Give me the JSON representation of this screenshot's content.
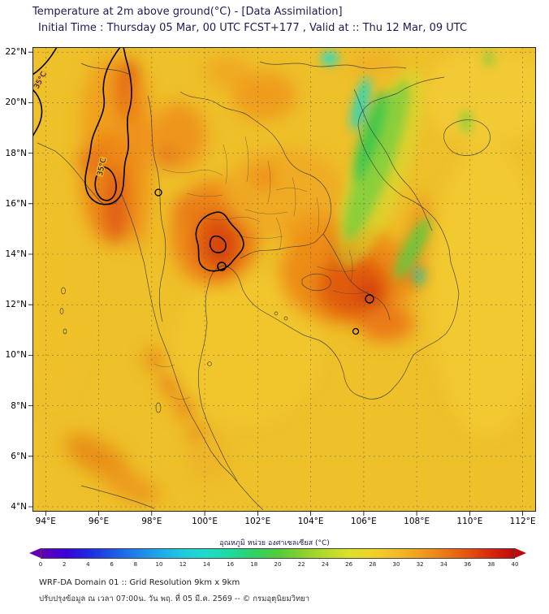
{
  "header": {
    "title": "Temperature at 2m above ground(°C) - [Data Assimilation]",
    "subtitle": "Initial Time : Thursday 05 Mar, 00 UTC FCST+177 , Valid at :: Thu 12 Mar, 09 UTC"
  },
  "map": {
    "x_ticks": [
      "94°E",
      "96°E",
      "98°E",
      "100°E",
      "102°E",
      "104°E",
      "106°E",
      "108°E",
      "110°E",
      "112°E"
    ],
    "y_ticks": [
      "22°N",
      "20°N",
      "18°N",
      "16°N",
      "14°N",
      "12°N",
      "10°N",
      "8°N",
      "6°N",
      "4°N"
    ],
    "contour_labels": [
      "35°C",
      "35°C"
    ]
  },
  "colorbar": {
    "title": "อุณหภูมิ หน่วย องศาเซลเซียส (°C)",
    "ticks": [
      "0",
      "2",
      "4",
      "6",
      "8",
      "10",
      "12",
      "14",
      "16",
      "18",
      "20",
      "22",
      "24",
      "26",
      "28",
      "30",
      "32",
      "34",
      "36",
      "38",
      "40"
    ],
    "gradient": [
      "#6600b4",
      "#3b00d8",
      "#1e2ae0",
      "#1e56e6",
      "#1e80ea",
      "#1ea8ea",
      "#1ecade",
      "#1edcc8",
      "#1eda9e",
      "#2ed262",
      "#52cc3a",
      "#86d02e",
      "#b4da2a",
      "#dce02a",
      "#f0d229",
      "#f2bc26",
      "#f0a01e",
      "#ec7c16",
      "#e65410",
      "#d8280c",
      "#c00808"
    ]
  },
  "footer": {
    "line1": "WRF-DA Domain 01 :: Grid Resolution 9km x 9km",
    "line2": "ปรับปรุงข้อมูล ณ เวลา 07:00น. วัน พฤ. ที่ 05 มี.ค. 2569 -- © กรมอุตุนิยมวิทยา"
  }
}
